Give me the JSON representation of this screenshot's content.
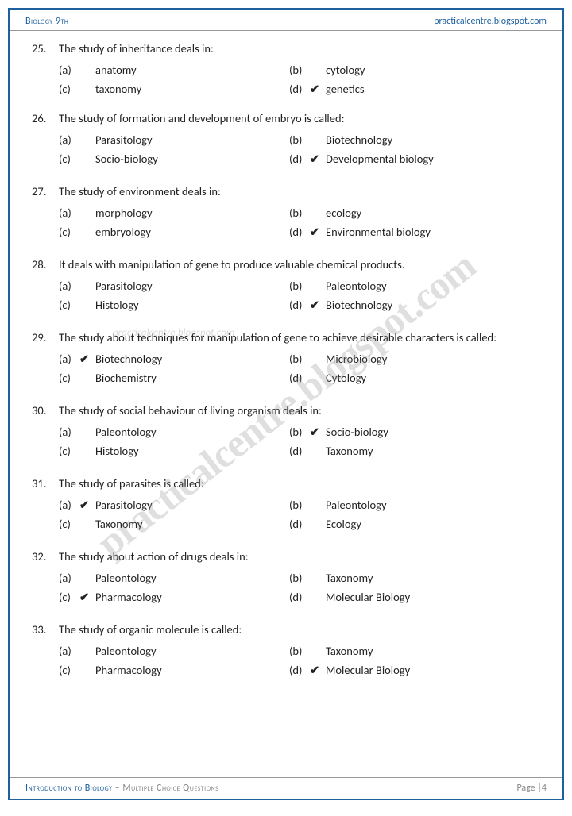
{
  "header": {
    "left": "Biology 9th",
    "right": "practicalcentre.blogspot.com"
  },
  "footer": {
    "title": "Introduction to Biology",
    "sub": " – Multiple Choice Questions",
    "page": "Page |4"
  },
  "watermark": "practicalcentre.blogspot.com",
  "watermark2": "practicalcentre.blogspot.com",
  "questions": [
    {
      "n": "25.",
      "t": "The study of inheritance deals in:",
      "a": "anatomy",
      "b": "cytology",
      "c": "taxonomy",
      "d": "genetics",
      "ans": "d",
      "gap": false
    },
    {
      "n": "26.",
      "t": "The study of formation and development of embryo is called:",
      "a": "Parasitology",
      "b": "Biotechnology",
      "c": "Socio-biology",
      "d": "Developmental biology",
      "ans": "d",
      "gap": true
    },
    {
      "n": "27.",
      "t": "The study of environment deals in:",
      "a": "morphology",
      "b": "ecology",
      "c": "embryology",
      "d": "Environmental biology",
      "ans": "d",
      "gap": true
    },
    {
      "n": "28.",
      "t": "It deals with manipulation of gene to produce valuable chemical products.",
      "a": "Parasitology",
      "b": "Paleontology",
      "c": "Histology",
      "d": "Biotechnology",
      "ans": "d",
      "gap": true
    },
    {
      "n": "29.",
      "t": "The study about techniques for manipulation of gene to achieve desirable characters is called:",
      "a": "Biotechnology",
      "b": "Microbiology",
      "c": "Biochemistry",
      "d": "Cytology",
      "ans": "a",
      "gap": true
    },
    {
      "n": "30.",
      "t": "The study of social behaviour of living organism deals in:",
      "a": "Paleontology",
      "b": "Socio-biology",
      "c": "Histology",
      "d": "Taxonomy",
      "ans": "b",
      "gap": true
    },
    {
      "n": "31.",
      "t": "The study of parasites is called:",
      "a": "Parasitology",
      "b": "Paleontology",
      "c": "Taxonomy",
      "d": "Ecology",
      "ans": "a",
      "gap": true
    },
    {
      "n": "32.",
      "t": "The study about action of drugs deals in:",
      "a": "Paleontology",
      "b": "Taxonomy",
      "c": "Pharmacology",
      "d": "Molecular Biology",
      "ans": "c",
      "gap": true
    },
    {
      "n": "33.",
      "t": "The study of organic molecule is called:",
      "a": "Paleontology",
      "b": "Taxonomy",
      "c": "Pharmacology",
      "d": "Molecular Biology",
      "ans": "d",
      "gap": false
    }
  ],
  "colors": {
    "border": "#1e5f9e",
    "text": "#222",
    "muted": "#888"
  }
}
